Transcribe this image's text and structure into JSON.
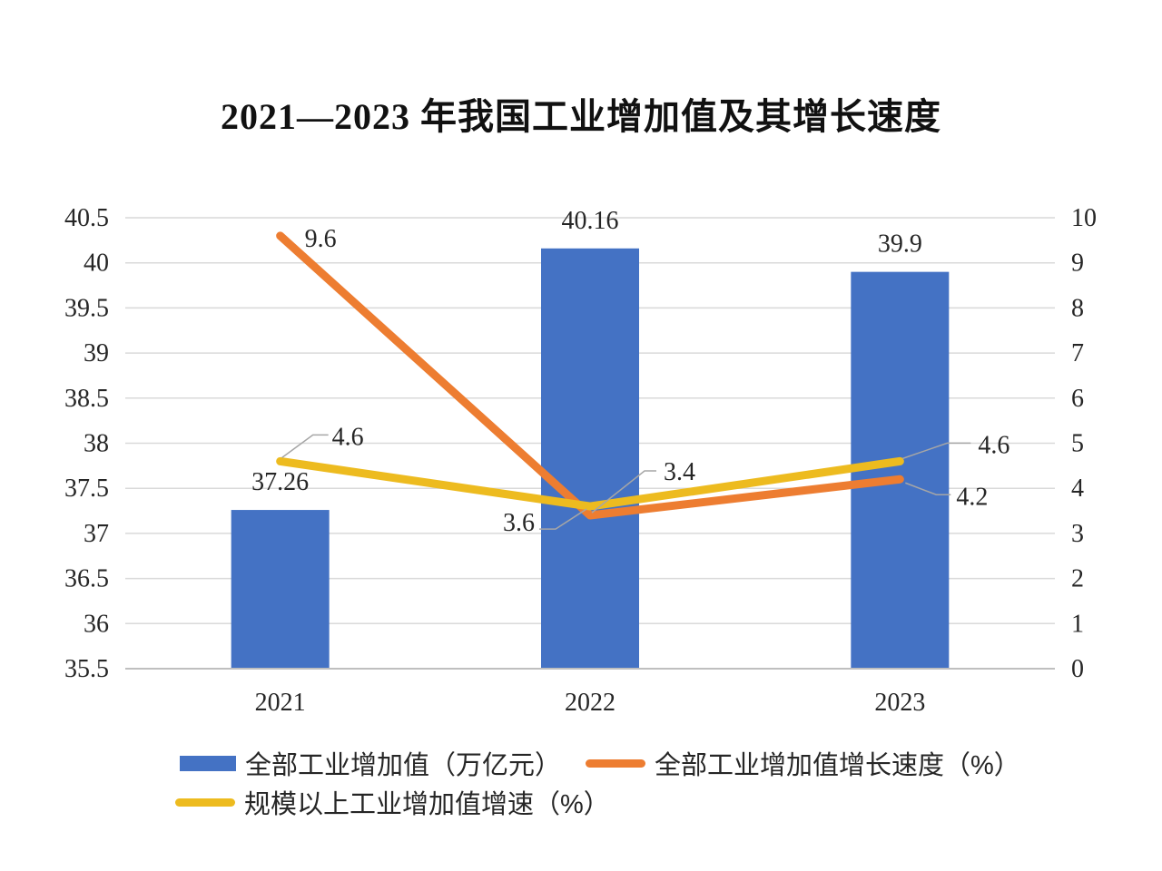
{
  "title": "2021—2023 年我国工业增加值及其增长速度",
  "chart_data": {
    "type": "combo (bar + line)",
    "title": "2021—2023 年我国工业增加值及其增长速度",
    "categories": [
      "2021",
      "2022",
      "2023"
    ],
    "series": [
      {
        "name": "全部工业增加值（万亿元）",
        "type": "bar",
        "axis": "left",
        "color": "#4472C4",
        "values": [
          37.26,
          40.16,
          39.9
        ],
        "labels": [
          "37.26",
          "40.16",
          "39.9"
        ]
      },
      {
        "name": "全部工业增加值增长速度（%）",
        "type": "line",
        "axis": "right",
        "color": "#ED7D31",
        "values": [
          9.6,
          3.4,
          4.2
        ],
        "labels": [
          "9.6",
          "3.4",
          "4.2"
        ]
      },
      {
        "name": "规模以上工业增加值增速（%）",
        "type": "line",
        "axis": "right",
        "color": "#EDBB1F",
        "values": [
          4.6,
          3.6,
          4.6
        ],
        "labels": [
          "4.6",
          "3.6",
          "4.6"
        ]
      }
    ],
    "left_axis": {
      "min": 35.5,
      "max": 40.5,
      "step": 0.5,
      "tick_labels": [
        "40.5",
        "40",
        "39.5",
        "39",
        "38.5",
        "38",
        "37.5",
        "37",
        "36.5",
        "36",
        "35.5"
      ]
    },
    "right_axis": {
      "min": 0,
      "max": 10,
      "step": 1,
      "tick_labels": [
        "10",
        "9",
        "8",
        "7",
        "6",
        "5",
        "4",
        "3",
        "2",
        "1",
        "0"
      ]
    },
    "xlabel": "",
    "ylabel": "",
    "grid": true,
    "gridline_color": "#D9D9D9",
    "leader_line_color": "#A6A6A6",
    "legend_position": "bottom"
  },
  "legend": {
    "items": [
      {
        "label": "全部工业增加值（万亿元）",
        "swatch": "bar",
        "color": "#4472C4"
      },
      {
        "label": "全部工业增加值增长速度（%）",
        "swatch": "line",
        "color": "#ED7D31"
      },
      {
        "label": "规模以上工业增加值增速（%）",
        "swatch": "line",
        "color": "#EDBB1F"
      }
    ]
  }
}
